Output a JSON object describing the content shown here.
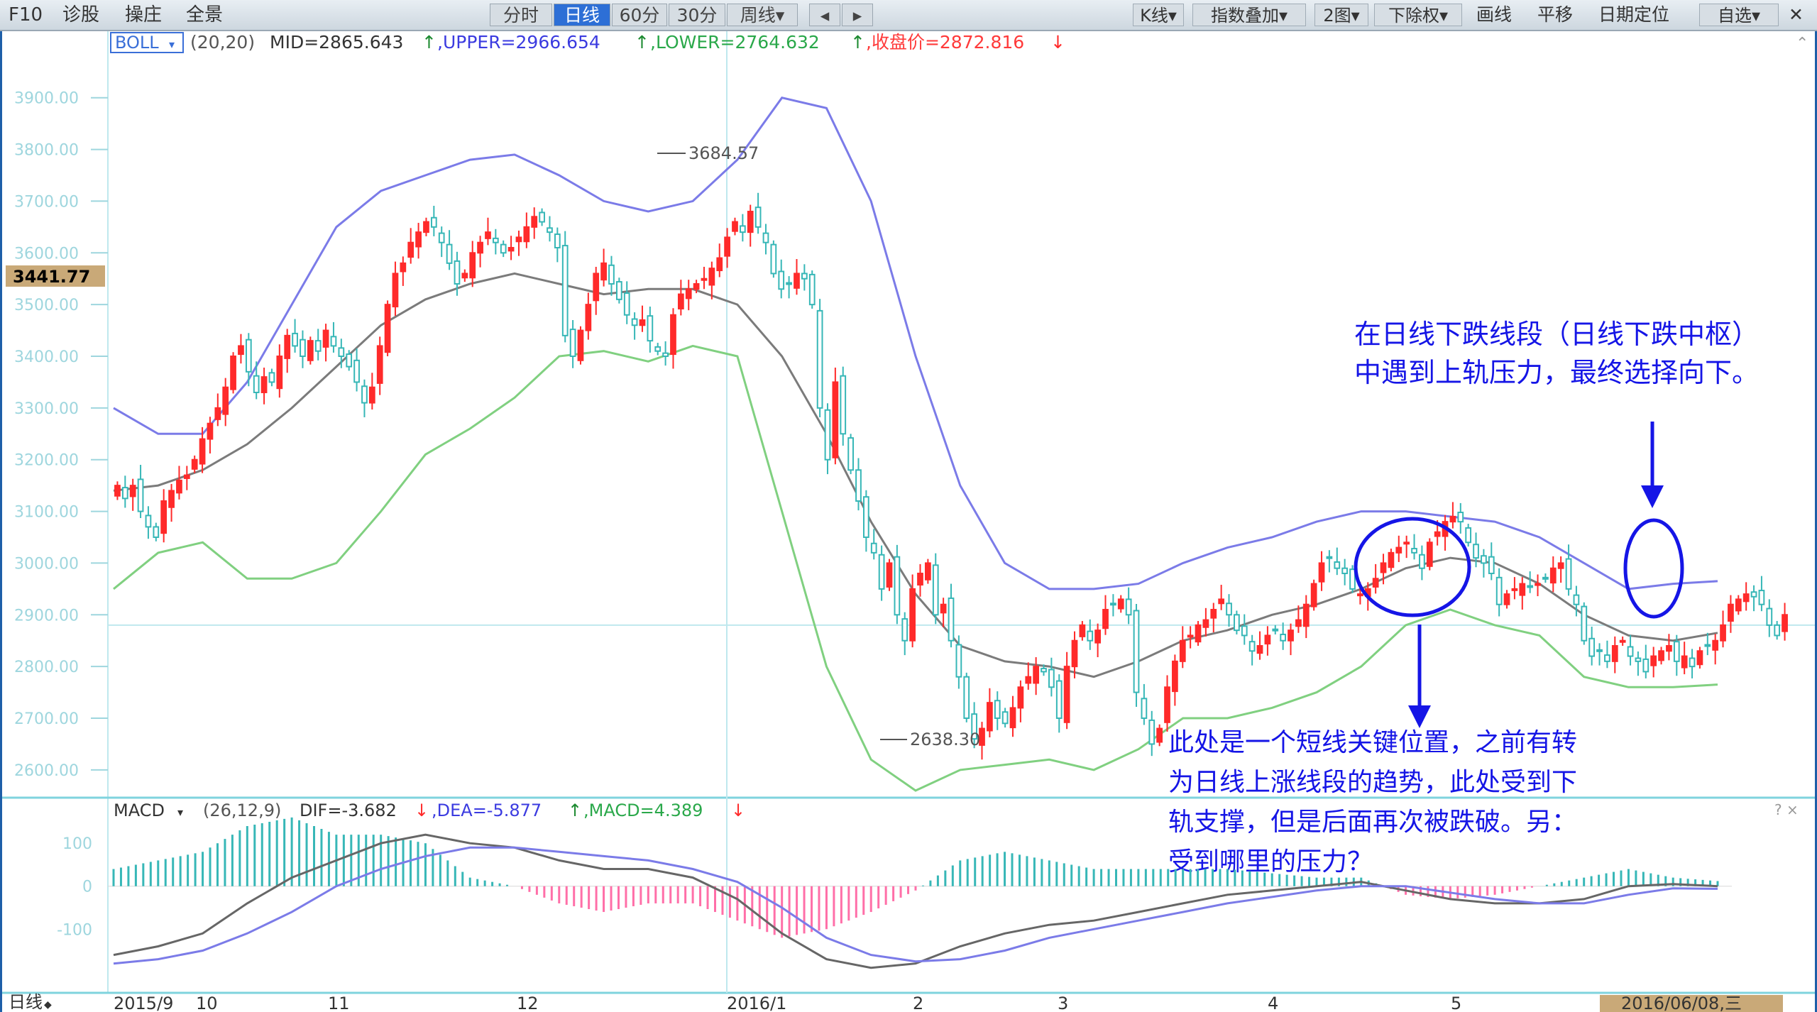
{
  "toolbar": {
    "left": [
      "F10",
      "诊股",
      "操庄",
      "全景"
    ],
    "periods": [
      "分时",
      "日线",
      "60分",
      "30分",
      "周线▾"
    ],
    "active_period": "日线",
    "nav_prev": "◂",
    "nav_next": "▸",
    "right": [
      "K线▾",
      "指数叠加▾",
      "2图▾",
      "下除权▾",
      "画线",
      "平移",
      "日期定位",
      "自选▾"
    ],
    "close": "✕"
  },
  "colors": {
    "up": "#ff2a2a",
    "down": "#37b7b7",
    "upper": "#7b7be8",
    "mid": "#7b7b7b",
    "lower": "#80d080",
    "annotation": "#1515e6"
  },
  "boll_header": {
    "indicator": "BOLL",
    "params": "(20,20)",
    "mid": "MID=2865.643",
    "mid_arrow": "↑",
    "upper": ",UPPER=2966.654",
    "upper_arrow": "↑",
    "lower": ",LOWER=2764.632",
    "lower_arrow": "↑",
    "close": ",收盘价=2872.816",
    "close_arrow": "↓"
  },
  "macd_header": {
    "indicator": "MACD",
    "params": "(26,12,9)",
    "dif": "DIF=-3.682",
    "dif_arrow": "↓",
    "dea": ",DEA=-5.877",
    "dea_arrow": "↑",
    "macd": ",MACD=4.389",
    "macd_arrow": "↓"
  },
  "price_axis": [
    "3900.00",
    "3800.00",
    "3700.00",
    "3600.00",
    "3500.00",
    "3400.00",
    "3300.00",
    "3200.00",
    "3100.00",
    "3000.00",
    "2900.00",
    "2800.00",
    "2700.00",
    "2600.00"
  ],
  "macd_axis": [
    "100",
    "0",
    "-100"
  ],
  "current_price_tag": "3441.77",
  "peak_label": "3684.57",
  "trough_label": "2638.30",
  "time_axis": {
    "period_label": "日线",
    "labels": [
      "2015/9",
      "10",
      "11",
      "12",
      "2016/1",
      "2",
      "3",
      "4",
      "5"
    ],
    "cursor_date": "2016/06/08,三"
  },
  "annotations": {
    "top_right_line1": "在日线下跌线段（日线下跌中枢）",
    "top_right_line2": "中遇到上轨压力，最终选择向下。",
    "bottom_line1": "此处是一个短线关键位置，之前有转",
    "bottom_line2": "为日线上涨线段的趋势，此处受到下",
    "bottom_line3": "轨支撑，但是后面再次被跌破。另：",
    "bottom_line4": "受到哪里的压力？"
  },
  "chart_data": {
    "type": "candlestick",
    "y_range": [
      2560,
      3960
    ],
    "closes": [
      3150,
      3125,
      3150,
      3100,
      3070,
      3050,
      3120,
      3140,
      3160,
      3170,
      3200,
      3240,
      3270,
      3300,
      3340,
      3400,
      3420,
      3370,
      3330,
      3360,
      3350,
      3400,
      3440,
      3420,
      3400,
      3430,
      3410,
      3450,
      3420,
      3400,
      3380,
      3350,
      3310,
      3340,
      3420,
      3500,
      3560,
      3580,
      3620,
      3640,
      3660,
      3650,
      3620,
      3580,
      3540,
      3560,
      3600,
      3620,
      3640,
      3620,
      3600,
      3610,
      3630,
      3650,
      3670,
      3660,
      3640,
      3610,
      3440,
      3400,
      3450,
      3500,
      3560,
      3580,
      3540,
      3510,
      3480,
      3460,
      3470,
      3430,
      3410,
      3400,
      3480,
      3520,
      3530,
      3540,
      3550,
      3570,
      3590,
      3630,
      3660,
      3640,
      3680,
      3650,
      3620,
      3560,
      3530,
      3540,
      3560,
      3550,
      3500,
      3300,
      3200,
      3350,
      3250,
      3180,
      3120,
      3050,
      3020,
      2950,
      3000,
      2900,
      2850,
      2950,
      2980,
      3000,
      2900,
      2920,
      2850,
      2780,
      2700,
      2660,
      2680,
      2730,
      2700,
      2690,
      2720,
      2760,
      2780,
      2800,
      2790,
      2760,
      2700,
      2800,
      2850,
      2880,
      2850,
      2870,
      2910,
      2920,
      2930,
      2900,
      2750,
      2700,
      2650,
      2680,
      2760,
      2810,
      2850,
      2860,
      2880,
      2890,
      2910,
      2930,
      2900,
      2870,
      2860,
      2830,
      2840,
      2860,
      2870,
      2850,
      2870,
      2890,
      2920,
      2960,
      3000,
      3010,
      2990,
      2980,
      2950,
      2940,
      2950,
      2970,
      3000,
      3020,
      3030,
      3040,
      3020,
      2990,
      3040,
      3060,
      3080,
      3090,
      3080,
      3040,
      3010,
      3000,
      2980,
      2920,
      2940,
      2950,
      2960,
      2955,
      2960,
      2970,
      2990,
      3000,
      2950,
      2920,
      2850,
      2820,
      2830,
      2810,
      2840,
      2850,
      2820,
      2810,
      2790,
      2820,
      2830,
      2840,
      2810,
      2820,
      2800,
      2830,
      2840,
      2850,
      2880,
      2920,
      2930,
      2940,
      2935,
      2920,
      2880,
      2860,
      2900
    ],
    "upper_band": [
      3300,
      3250,
      3250,
      3350,
      3500,
      3650,
      3720,
      3750,
      3780,
      3790,
      3750,
      3700,
      3680,
      3700,
      3780,
      3900,
      3880,
      3700,
      3400,
      3150,
      3000,
      2950,
      2950,
      2960,
      3000,
      3030,
      3050,
      3080,
      3100,
      3100,
      3090,
      3080,
      3050,
      3000,
      2950,
      2960,
      2965
    ],
    "mid_band": [
      3140,
      3150,
      3180,
      3230,
      3300,
      3380,
      3460,
      3510,
      3540,
      3560,
      3540,
      3520,
      3530,
      3530,
      3500,
      3400,
      3250,
      3080,
      2940,
      2840,
      2810,
      2800,
      2780,
      2810,
      2850,
      2870,
      2900,
      2920,
      2950,
      2990,
      3010,
      3000,
      2960,
      2900,
      2860,
      2850,
      2865
    ],
    "lower_band": [
      2950,
      3020,
      3040,
      2970,
      2970,
      3000,
      3100,
      3210,
      3260,
      3320,
      3400,
      3410,
      3390,
      3420,
      3400,
      3100,
      2800,
      2620,
      2560,
      2600,
      2610,
      2620,
      2600,
      2640,
      2700,
      2700,
      2720,
      2750,
      2800,
      2880,
      2910,
      2880,
      2860,
      2780,
      2760,
      2760,
      2765
    ],
    "macd_dif": [
      -160,
      -140,
      -110,
      -40,
      20,
      60,
      100,
      120,
      100,
      90,
      60,
      40,
      40,
      20,
      -30,
      -110,
      -170,
      -190,
      -180,
      -140,
      -110,
      -90,
      -80,
      -60,
      -40,
      -20,
      -10,
      0,
      10,
      -10,
      -30,
      -40,
      -40,
      -30,
      0,
      5,
      0
    ],
    "macd_dea": [
      -180,
      -170,
      -150,
      -110,
      -60,
      0,
      40,
      70,
      90,
      90,
      80,
      70,
      60,
      40,
      10,
      -50,
      -120,
      -160,
      -175,
      -170,
      -150,
      -120,
      -100,
      -80,
      -60,
      -40,
      -25,
      -10,
      0,
      0,
      -15,
      -30,
      -40,
      -40,
      -20,
      -5,
      -6
    ],
    "macd_range": [
      -240,
      140
    ]
  }
}
